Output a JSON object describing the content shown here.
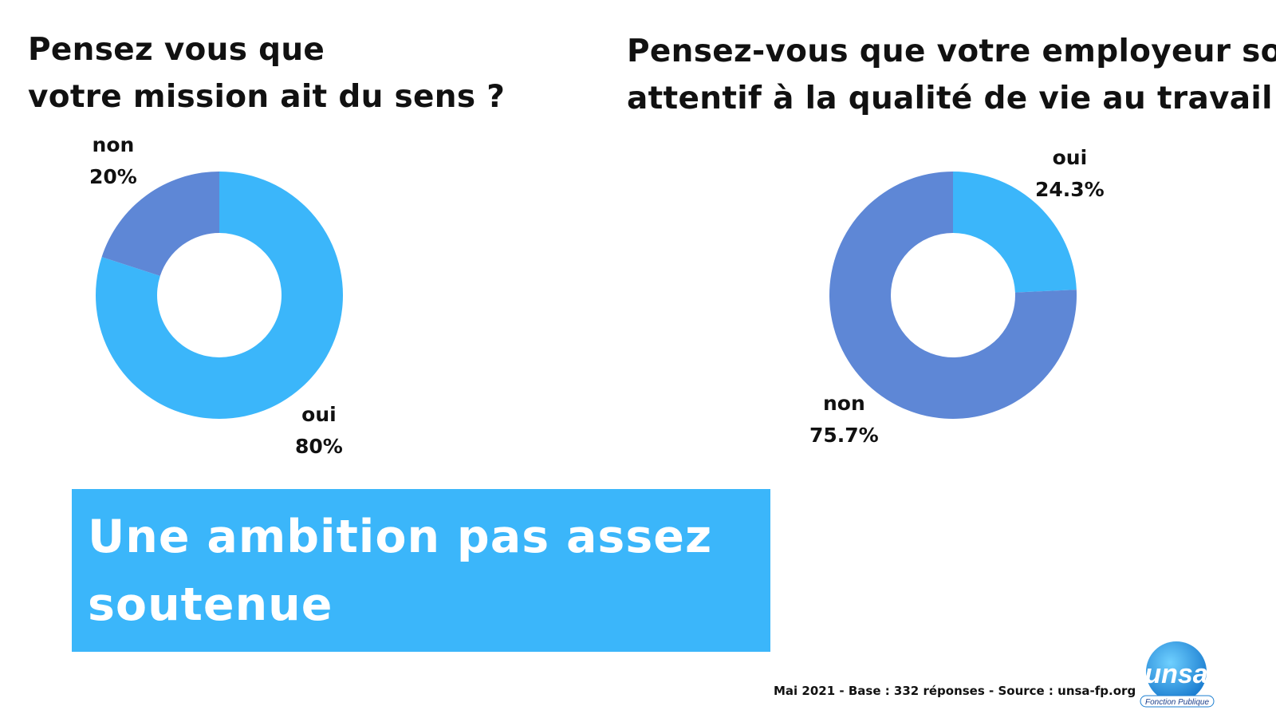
{
  "chart_data": [
    {
      "type": "pie",
      "title": "Pensez vous que votre mission ait du sens ?",
      "title_lines": [
        "Pensez vous que",
        "votre mission ait du sens ?"
      ],
      "categories": [
        "oui",
        "non"
      ],
      "values": [
        80,
        20
      ],
      "value_labels": [
        "80%",
        "20%"
      ],
      "colors": [
        "#3bb6fa",
        "#5e87d6"
      ]
    },
    {
      "type": "pie",
      "title": "Pensez-vous que votre employeur soit attentif à la qualité de vie au travail ?",
      "title_lines": [
        "Pensez-vous que votre employeur soit",
        "attentif à la qualité de vie au travail ?"
      ],
      "categories": [
        "oui",
        "non"
      ],
      "values": [
        24.3,
        75.7
      ],
      "value_labels": [
        "24.3%",
        "75.7%"
      ],
      "colors": [
        "#3bb6fa",
        "#5e87d6"
      ]
    }
  ],
  "banner": {
    "text": "Une ambition pas assez soutenue",
    "color": "#3bb6fa"
  },
  "footer": {
    "source": "Mai 2021 - Base : 332 réponses - Source : unsa-fp.org"
  },
  "logo": {
    "text": "unsa",
    "subtitle": "Fonction Publique"
  }
}
